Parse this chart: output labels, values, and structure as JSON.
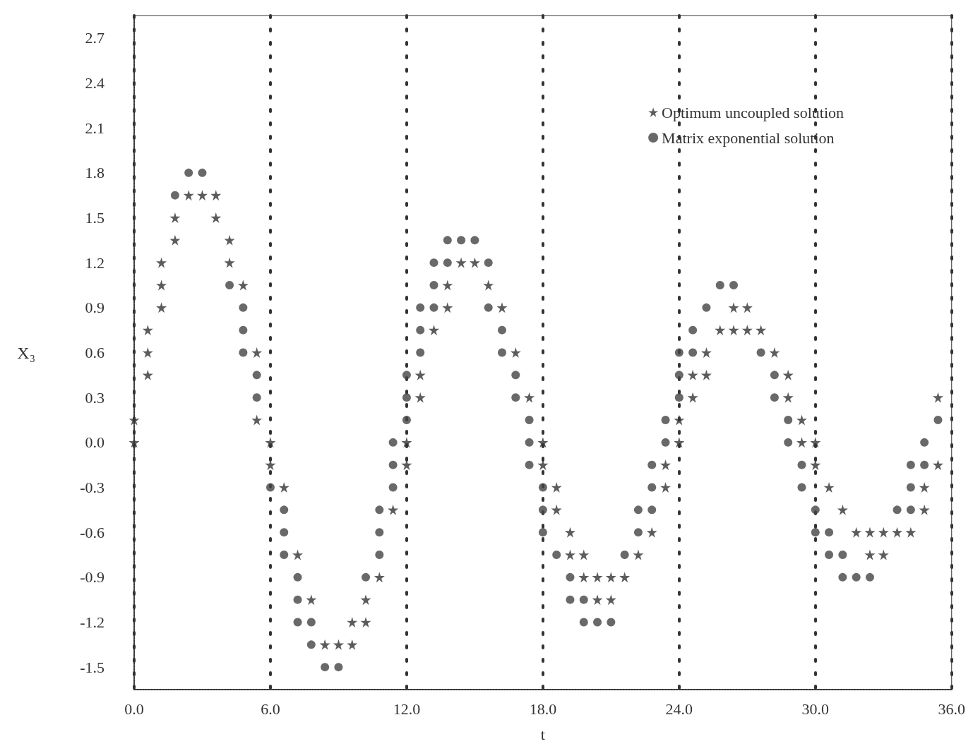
{
  "chart_data": {
    "type": "scatter",
    "xlabel": "t",
    "ylabel": "X₃",
    "xlim": [
      0,
      36
    ],
    "ylim": [
      -1.65,
      2.85
    ],
    "xticks": [
      {
        "value": 0,
        "label": "0.0"
      },
      {
        "value": 6,
        "label": "6.0"
      },
      {
        "value": 12,
        "label": "12.0"
      },
      {
        "value": 18,
        "label": "18.0"
      },
      {
        "value": 24,
        "label": "24.0"
      },
      {
        "value": 30,
        "label": "30.0"
      },
      {
        "value": 36,
        "label": "36.0"
      }
    ],
    "yticks": [
      -1.5,
      -1.2,
      -0.9,
      -0.6,
      -0.3,
      {
        "value": 0,
        "label": "0.0"
      },
      0.3,
      0.6,
      0.9,
      1.2,
      1.5,
      1.8,
      2.1,
      2.4,
      2.7
    ],
    "grid": "x",
    "legend": "top right",
    "series": [
      {
        "name": "Optimum uncoupled solution",
        "color": "#333333",
        "marker": "star",
        "x": [
          0,
          0,
          0.6,
          0.6,
          0.6,
          1.2,
          1.2,
          1.2,
          1.8,
          1.8,
          2.4,
          3.0,
          3.6,
          3.6,
          4.2,
          4.2,
          4.8,
          5.4,
          5.4,
          6.0,
          6.0,
          6.6,
          7.2,
          7.8,
          8.4,
          9.0,
          9.6,
          9.6,
          10.2,
          10.2,
          10.8,
          11.4,
          12.0,
          12.0,
          12.6,
          12.6,
          13.2,
          13.8,
          13.8,
          14.4,
          15.0,
          15.6,
          16.2,
          16.8,
          17.4,
          18.0,
          18.0,
          18.6,
          18.6,
          19.2,
          19.2,
          19.8,
          19.8,
          20.4,
          20.4,
          21.0,
          21.0,
          21.6,
          22.2,
          22.8,
          23.4,
          23.4,
          24.0,
          24.0,
          24.6,
          24.6,
          25.2,
          25.2,
          25.8,
          26.4,
          26.4,
          27.0,
          27.0,
          27.6,
          28.2,
          28.8,
          28.8,
          29.4,
          29.4,
          30.0,
          30.0,
          30.6,
          31.2,
          31.8,
          32.4,
          32.4,
          33.0,
          33.0,
          33.6,
          34.2,
          34.8,
          34.8,
          35.4,
          35.4
        ],
        "values": [
          0.15,
          0.0,
          0.75,
          0.6,
          0.45,
          1.2,
          1.05,
          0.9,
          1.5,
          1.35,
          1.65,
          1.65,
          1.65,
          1.5,
          1.35,
          1.2,
          1.05,
          0.6,
          0.15,
          0.0,
          -0.15,
          -0.3,
          -0.75,
          -1.05,
          -1.35,
          -1.35,
          -1.35,
          -1.2,
          -1.2,
          -1.05,
          -0.9,
          -0.45,
          -0.15,
          0.0,
          0.45,
          0.3,
          0.75,
          1.05,
          0.9,
          1.2,
          1.2,
          1.05,
          0.9,
          0.6,
          0.3,
          0.0,
          -0.15,
          -0.3,
          -0.45,
          -0.6,
          -0.75,
          -0.75,
          -0.9,
          -0.9,
          -1.05,
          -0.9,
          -1.05,
          -0.9,
          -0.75,
          -0.6,
          -0.3,
          -0.15,
          0.15,
          0.0,
          0.45,
          0.3,
          0.6,
          0.45,
          0.75,
          0.9,
          0.75,
          0.9,
          0.75,
          0.75,
          0.6,
          0.45,
          0.3,
          0.15,
          0.0,
          0.0,
          -0.15,
          -0.3,
          -0.45,
          -0.6,
          -0.6,
          -0.75,
          -0.6,
          -0.75,
          -0.6,
          -0.6,
          -0.45,
          -0.3,
          -0.15,
          0.3
        ]
      },
      {
        "name": "Matrix exponential solution",
        "color": "#444444",
        "marker": "circle",
        "x": [
          1.8,
          2.4,
          3.0,
          4.2,
          4.8,
          4.8,
          4.8,
          5.4,
          5.4,
          6.0,
          6.6,
          6.6,
          6.6,
          7.2,
          7.2,
          7.2,
          7.8,
          7.8,
          8.4,
          9.0,
          10.2,
          10.8,
          10.8,
          10.8,
          11.4,
          11.4,
          11.4,
          12.0,
          12.0,
          12.0,
          12.6,
          12.6,
          12.6,
          13.2,
          13.2,
          13.2,
          13.8,
          13.8,
          14.4,
          15.0,
          15.6,
          15.6,
          16.2,
          16.2,
          16.8,
          16.8,
          17.4,
          17.4,
          17.4,
          18.0,
          18.0,
          18.0,
          18.6,
          19.2,
          19.2,
          19.8,
          19.8,
          20.4,
          21.0,
          21.6,
          22.2,
          22.2,
          22.8,
          22.8,
          22.8,
          23.4,
          23.4,
          24.0,
          24.0,
          24.0,
          24.6,
          24.6,
          25.2,
          25.8,
          26.4,
          27.6,
          28.2,
          28.2,
          28.8,
          28.8,
          29.4,
          29.4,
          30.0,
          30.0,
          30.6,
          30.6,
          31.2,
          31.2,
          31.8,
          32.4,
          33.6,
          34.2,
          34.2,
          34.2,
          34.8,
          34.8,
          35.4
        ],
        "values": [
          1.65,
          1.8,
          1.8,
          1.05,
          0.9,
          0.75,
          0.6,
          0.45,
          0.3,
          -0.3,
          -0.45,
          -0.6,
          -0.75,
          -0.9,
          -1.05,
          -1.2,
          -1.2,
          -1.35,
          -1.5,
          -1.5,
          -0.9,
          -0.75,
          -0.6,
          -0.45,
          -0.3,
          -0.15,
          0.0,
          0.15,
          0.3,
          0.45,
          0.6,
          0.75,
          0.9,
          0.9,
          1.05,
          1.2,
          1.2,
          1.35,
          1.35,
          1.35,
          1.2,
          0.9,
          0.75,
          0.6,
          0.45,
          0.3,
          0.15,
          0.0,
          -0.15,
          -0.3,
          -0.45,
          -0.6,
          -0.75,
          -0.9,
          -1.05,
          -1.05,
          -1.2,
          -1.2,
          -1.2,
          -0.75,
          -0.6,
          -0.45,
          -0.45,
          -0.3,
          -0.15,
          0.0,
          0.15,
          0.3,
          0.45,
          0.6,
          0.6,
          0.75,
          0.9,
          1.05,
          1.05,
          0.6,
          0.45,
          0.3,
          0.15,
          0.0,
          -0.15,
          -0.3,
          -0.45,
          -0.6,
          -0.6,
          -0.75,
          -0.75,
          -0.9,
          -0.9,
          -0.9,
          -0.45,
          -0.45,
          -0.3,
          -0.15,
          -0.15,
          0.0,
          0.15
        ]
      }
    ]
  }
}
